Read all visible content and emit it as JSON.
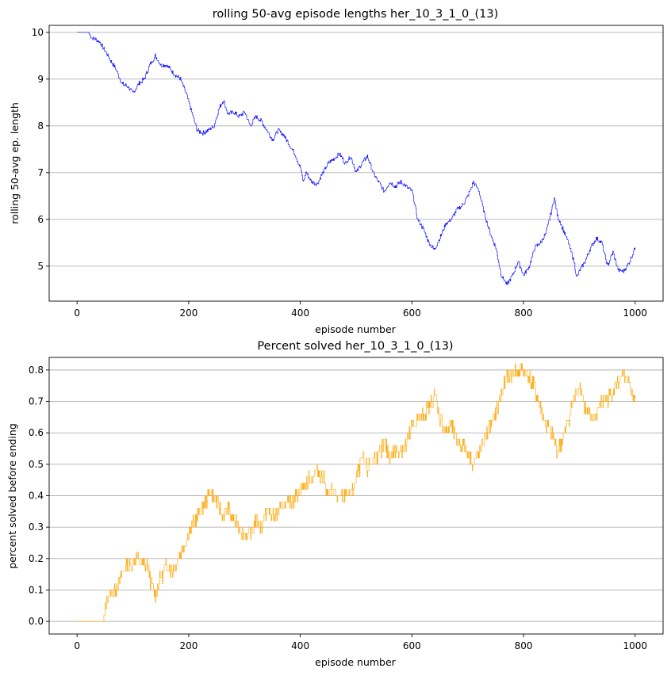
{
  "chart_data": [
    {
      "type": "line",
      "title": "rolling 50-avg episode lengths her_10_3_1_0_(13)",
      "xlabel": "episode number",
      "ylabel": "rolling 50-avg ep. length",
      "xlim": [
        -50,
        1050
      ],
      "ylim": [
        4.25,
        10.15
      ],
      "xticks": [
        0,
        200,
        400,
        600,
        800,
        1000
      ],
      "yticks": [
        5,
        6,
        7,
        8,
        9,
        10
      ],
      "grid": "y",
      "color": "#0000ff",
      "series": [
        {
          "keypoints": [
            [
              0,
              10.0
            ],
            [
              20,
              10.0
            ],
            [
              25,
              9.9
            ],
            [
              40,
              9.8
            ],
            [
              55,
              9.5
            ],
            [
              70,
              9.2
            ],
            [
              80,
              8.9
            ],
            [
              90,
              8.85
            ],
            [
              100,
              8.7
            ],
            [
              110,
              8.9
            ],
            [
              120,
              9.0
            ],
            [
              130,
              9.3
            ],
            [
              140,
              9.5
            ],
            [
              150,
              9.3
            ],
            [
              160,
              9.3
            ],
            [
              175,
              9.1
            ],
            [
              185,
              9.0
            ],
            [
              195,
              8.7
            ],
            [
              205,
              8.3
            ],
            [
              215,
              7.9
            ],
            [
              225,
              7.85
            ],
            [
              235,
              7.9
            ],
            [
              245,
              8.0
            ],
            [
              255,
              8.4
            ],
            [
              262,
              8.55
            ],
            [
              270,
              8.25
            ],
            [
              280,
              8.3
            ],
            [
              290,
              8.2
            ],
            [
              300,
              8.3
            ],
            [
              310,
              8.0
            ],
            [
              320,
              8.2
            ],
            [
              330,
              8.1
            ],
            [
              340,
              7.9
            ],
            [
              350,
              7.7
            ],
            [
              360,
              7.9
            ],
            [
              370,
              7.8
            ],
            [
              380,
              7.6
            ],
            [
              390,
              7.4
            ],
            [
              400,
              7.1
            ],
            [
              405,
              6.8
            ],
            [
              410,
              7.0
            ],
            [
              420,
              6.8
            ],
            [
              430,
              6.75
            ],
            [
              440,
              7.0
            ],
            [
              450,
              7.2
            ],
            [
              460,
              7.3
            ],
            [
              470,
              7.4
            ],
            [
              480,
              7.2
            ],
            [
              490,
              7.35
            ],
            [
              500,
              7.0
            ],
            [
              510,
              7.2
            ],
            [
              520,
              7.35
            ],
            [
              530,
              7.0
            ],
            [
              540,
              6.8
            ],
            [
              550,
              6.6
            ],
            [
              560,
              6.8
            ],
            [
              570,
              6.7
            ],
            [
              580,
              6.8
            ],
            [
              590,
              6.7
            ],
            [
              600,
              6.6
            ],
            [
              610,
              6.0
            ],
            [
              620,
              5.8
            ],
            [
              630,
              5.5
            ],
            [
              640,
              5.35
            ],
            [
              650,
              5.6
            ],
            [
              660,
              5.9
            ],
            [
              670,
              6.0
            ],
            [
              680,
              6.2
            ],
            [
              690,
              6.3
            ],
            [
              700,
              6.5
            ],
            [
              710,
              6.8
            ],
            [
              720,
              6.6
            ],
            [
              730,
              6.1
            ],
            [
              740,
              5.7
            ],
            [
              750,
              5.4
            ],
            [
              760,
              4.8
            ],
            [
              770,
              4.6
            ],
            [
              780,
              4.8
            ],
            [
              790,
              5.1
            ],
            [
              800,
              4.8
            ],
            [
              810,
              5.0
            ],
            [
              820,
              5.4
            ],
            [
              830,
              5.5
            ],
            [
              840,
              5.7
            ],
            [
              850,
              6.2
            ],
            [
              855,
              6.45
            ],
            [
              860,
              6.1
            ],
            [
              870,
              5.8
            ],
            [
              880,
              5.5
            ],
            [
              890,
              5.1
            ],
            [
              895,
              4.75
            ],
            [
              900,
              4.9
            ],
            [
              910,
              5.1
            ],
            [
              920,
              5.4
            ],
            [
              930,
              5.6
            ],
            [
              940,
              5.5
            ],
            [
              950,
              5.0
            ],
            [
              960,
              5.3
            ],
            [
              970,
              4.9
            ],
            [
              980,
              4.9
            ],
            [
              990,
              5.1
            ],
            [
              1000,
              5.4
            ]
          ]
        }
      ]
    },
    {
      "type": "line",
      "title": "Percent solved her_10_3_1_0_(13)",
      "xlabel": "episode number",
      "ylabel": "percent solved before ending",
      "xlim": [
        -50,
        1050
      ],
      "ylim": [
        -0.04,
        0.84
      ],
      "xticks": [
        0,
        200,
        400,
        600,
        800,
        1000
      ],
      "yticks": [
        0.0,
        0.1,
        0.2,
        0.3,
        0.4,
        0.5,
        0.6,
        0.7,
        0.8
      ],
      "grid": "y",
      "color": "#ffa500",
      "series": [
        {
          "keypoints": [
            [
              0,
              0.0
            ],
            [
              48,
              0.0
            ],
            [
              50,
              0.04
            ],
            [
              55,
              0.08
            ],
            [
              65,
              0.1
            ],
            [
              75,
              0.12
            ],
            [
              85,
              0.18
            ],
            [
              95,
              0.17
            ],
            [
              105,
              0.2
            ],
            [
              115,
              0.18
            ],
            [
              125,
              0.18
            ],
            [
              130,
              0.14
            ],
            [
              140,
              0.08
            ],
            [
              150,
              0.14
            ],
            [
              160,
              0.18
            ],
            [
              170,
              0.16
            ],
            [
              180,
              0.2
            ],
            [
              190,
              0.24
            ],
            [
              200,
              0.28
            ],
            [
              210,
              0.32
            ],
            [
              220,
              0.35
            ],
            [
              230,
              0.38
            ],
            [
              240,
              0.42
            ],
            [
              250,
              0.38
            ],
            [
              260,
              0.34
            ],
            [
              270,
              0.36
            ],
            [
              280,
              0.32
            ],
            [
              290,
              0.3
            ],
            [
              300,
              0.28
            ],
            [
              310,
              0.27
            ],
            [
              320,
              0.32
            ],
            [
              330,
              0.3
            ],
            [
              340,
              0.36
            ],
            [
              350,
              0.33
            ],
            [
              360,
              0.34
            ],
            [
              370,
              0.38
            ],
            [
              380,
              0.37
            ],
            [
              390,
              0.4
            ],
            [
              400,
              0.42
            ],
            [
              410,
              0.44
            ],
            [
              420,
              0.46
            ],
            [
              430,
              0.48
            ],
            [
              440,
              0.46
            ],
            [
              450,
              0.4
            ],
            [
              460,
              0.42
            ],
            [
              470,
              0.38
            ],
            [
              480,
              0.41
            ],
            [
              490,
              0.4
            ],
            [
              500,
              0.45
            ],
            [
              510,
              0.52
            ],
            [
              520,
              0.48
            ],
            [
              530,
              0.52
            ],
            [
              540,
              0.53
            ],
            [
              550,
              0.56
            ],
            [
              560,
              0.53
            ],
            [
              570,
              0.54
            ],
            [
              580,
              0.55
            ],
            [
              590,
              0.56
            ],
            [
              600,
              0.62
            ],
            [
              610,
              0.64
            ],
            [
              620,
              0.66
            ],
            [
              630,
              0.68
            ],
            [
              640,
              0.72
            ],
            [
              650,
              0.65
            ],
            [
              660,
              0.6
            ],
            [
              670,
              0.62
            ],
            [
              680,
              0.58
            ],
            [
              690,
              0.56
            ],
            [
              700,
              0.54
            ],
            [
              710,
              0.5
            ],
            [
              720,
              0.54
            ],
            [
              730,
              0.58
            ],
            [
              740,
              0.62
            ],
            [
              750,
              0.66
            ],
            [
              760,
              0.72
            ],
            [
              770,
              0.78
            ],
            [
              780,
              0.79
            ],
            [
              790,
              0.8
            ],
            [
              800,
              0.8
            ],
            [
              810,
              0.78
            ],
            [
              820,
              0.74
            ],
            [
              830,
              0.68
            ],
            [
              840,
              0.62
            ],
            [
              850,
              0.6
            ],
            [
              860,
              0.54
            ],
            [
              870,
              0.58
            ],
            [
              880,
              0.64
            ],
            [
              890,
              0.7
            ],
            [
              900,
              0.76
            ],
            [
              910,
              0.68
            ],
            [
              920,
              0.64
            ],
            [
              930,
              0.66
            ],
            [
              940,
              0.7
            ],
            [
              950,
              0.7
            ],
            [
              960,
              0.74
            ],
            [
              970,
              0.76
            ],
            [
              980,
              0.78
            ],
            [
              990,
              0.74
            ],
            [
              1000,
              0.71
            ]
          ]
        }
      ]
    }
  ]
}
